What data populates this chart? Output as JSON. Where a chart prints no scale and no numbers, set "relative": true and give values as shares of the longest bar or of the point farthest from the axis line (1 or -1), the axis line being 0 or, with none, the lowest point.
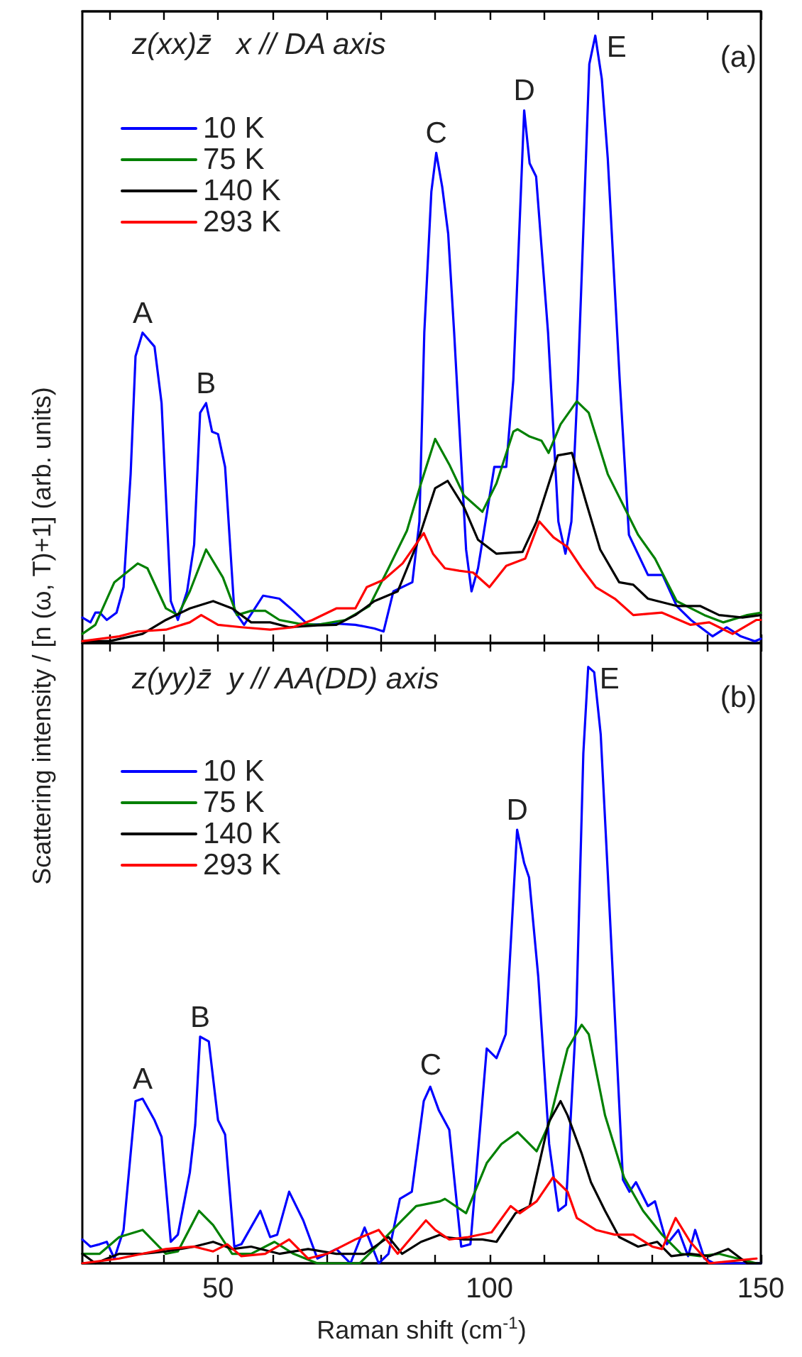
{
  "chart_data": [
    {
      "type": "line",
      "title": "z(xx)z̄   x // DA axis",
      "ylabel": "Scattering intensity / [n (ω, T)+1] (arb. units)",
      "relative": true,
      "xlim": [
        25,
        150
      ],
      "xticks": [
        {
          "value": 30,
          "label": null
        },
        {
          "value": 40,
          "label": null
        },
        50,
        {
          "value": 60,
          "label": null
        },
        {
          "value": 70,
          "label": null
        },
        {
          "value": 80,
          "label": null
        },
        {
          "value": 90,
          "label": null
        },
        100,
        {
          "value": 110,
          "label": null
        },
        {
          "value": 120,
          "label": null
        },
        {
          "value": 130,
          "label": null
        },
        {
          "value": 140,
          "label": null
        },
        150
      ],
      "tick_labels": false,
      "legend": "top left",
      "grid": false,
      "annotations": [
        {
          "text": "A",
          "x": 36.1,
          "y": 0.511
        },
        {
          "text": "B",
          "x": 47.8,
          "y": 0.395
        },
        {
          "text": "C",
          "x": 90.2,
          "y": 0.807
        },
        {
          "text": "D",
          "x": 106.4,
          "y": 0.877
        },
        {
          "text": "E",
          "x": 119.5,
          "y": 1.0
        },
        "(a)"
      ],
      "series": [
        {
          "name": "10 K",
          "color": "#0000ff",
          "x": [
            25,
            26.5,
            27.4,
            28.2,
            29.5,
            31.3,
            32.6,
            33.9,
            34.8,
            36.1,
            38.3,
            39.6,
            41.3,
            42.6,
            44.3,
            45.6,
            46.7,
            47.8,
            48.9,
            50.0,
            51.3,
            53.0,
            54.8,
            56.5,
            58.3,
            61.3,
            63.9,
            66.6,
            71.8,
            75.3,
            78.8,
            80.5,
            82.3,
            85.8,
            87.1,
            88.0,
            89.3,
            90.2,
            91.3,
            92.4,
            93.5,
            95.7,
            96.7,
            97.9,
            100.9,
            103.1,
            104.4,
            106.4,
            107.4,
            108.6,
            110.8,
            112.7,
            114.0,
            115.1,
            116.3,
            117.5,
            118.4,
            119.5,
            120.7,
            121.8,
            124.0,
            125.7,
            129.2,
            131.9,
            134.5,
            137.1,
            141.1,
            143.7,
            146.3,
            148.9,
            150
          ],
          "values": [
            0.042,
            0.034,
            0.05,
            0.05,
            0.038,
            0.05,
            0.092,
            0.278,
            0.472,
            0.511,
            0.488,
            0.395,
            0.069,
            0.038,
            0.085,
            0.162,
            0.379,
            0.395,
            0.348,
            0.344,
            0.29,
            0.053,
            0.03,
            0.053,
            0.078,
            0.073,
            0.053,
            0.03,
            0.032,
            0.03,
            0.024,
            0.019,
            0.085,
            0.1,
            0.2,
            0.511,
            0.743,
            0.807,
            0.751,
            0.674,
            0.511,
            0.154,
            0.085,
            0.123,
            0.29,
            0.29,
            0.433,
            0.877,
            0.79,
            0.768,
            0.511,
            0.2,
            0.147,
            0.2,
            0.433,
            0.728,
            0.953,
            1.0,
            0.929,
            0.798,
            0.433,
            0.178,
            0.112,
            0.112,
            0.061,
            0.038,
            0.011,
            0.026,
            0.011,
            0.003,
            0.007
          ]
        },
        {
          "name": "75 K",
          "color": "#008000",
          "x": [
            25,
            27.4,
            30.9,
            35.2,
            37.0,
            40.4,
            42.6,
            44.8,
            47.8,
            50.9,
            53.5,
            56.1,
            58.7,
            61.3,
            64.8,
            68.3,
            73.5,
            77.9,
            81.4,
            84.8,
            87.4,
            90.0,
            92.6,
            95.3,
            98.7,
            101.3,
            104.4,
            105.2,
            107.4,
            109.6,
            110.9,
            113.1,
            116.1,
            118.3,
            121.8,
            127.4,
            130.5,
            134.5,
            139.6,
            143.1,
            147.5,
            150
          ],
          "values": [
            0.015,
            0.03,
            0.1,
            0.131,
            0.123,
            0.057,
            0.046,
            0.085,
            0.154,
            0.108,
            0.046,
            0.053,
            0.053,
            0.038,
            0.032,
            0.03,
            0.038,
            0.061,
            0.123,
            0.185,
            0.263,
            0.336,
            0.294,
            0.243,
            0.216,
            0.263,
            0.348,
            0.352,
            0.34,
            0.333,
            0.313,
            0.36,
            0.398,
            0.379,
            0.278,
            0.178,
            0.139,
            0.069,
            0.046,
            0.034,
            0.046,
            0.05
          ]
        },
        {
          "name": "140 K",
          "color": "#000000",
          "x": [
            25,
            30.0,
            36.1,
            40.4,
            44.8,
            49.1,
            52.6,
            56.1,
            59.6,
            63.1,
            68.3,
            71.8,
            75.3,
            78.8,
            83.1,
            86.6,
            90.0,
            92.3,
            95.3,
            97.9,
            101.3,
            106.1,
            108.7,
            112.6,
            115.2,
            117.8,
            120.4,
            123.9,
            126.5,
            129.2,
            134.5,
            138.8,
            142.3,
            146.6,
            150
          ],
          "values": [
            0.003,
            0.003,
            0.015,
            0.038,
            0.057,
            0.069,
            0.057,
            0.034,
            0.034,
            0.026,
            0.029,
            0.03,
            0.046,
            0.069,
            0.085,
            0.162,
            0.255,
            0.267,
            0.224,
            0.17,
            0.147,
            0.15,
            0.2,
            0.309,
            0.313,
            0.232,
            0.154,
            0.1,
            0.096,
            0.073,
            0.061,
            0.061,
            0.046,
            0.042,
            0.046
          ]
        },
        {
          "name": "293 K",
          "color": "#ff0000",
          "x": [
            25,
            31.8,
            35.2,
            40.4,
            44.8,
            46.9,
            50.0,
            54.3,
            59.6,
            63.9,
            67.4,
            71.8,
            75.3,
            77.4,
            80.5,
            84.0,
            87.9,
            89.6,
            91.8,
            94.4,
            97.0,
            100.0,
            103.1,
            106.6,
            109.2,
            111.8,
            114.4,
            117.0,
            119.6,
            123.1,
            126.5,
            131.8,
            137.0,
            140.5,
            144.8,
            149.2,
            150
          ],
          "values": [
            0.003,
            0.011,
            0.019,
            0.022,
            0.034,
            0.046,
            0.03,
            0.026,
            0.022,
            0.026,
            0.038,
            0.057,
            0.057,
            0.092,
            0.104,
            0.131,
            0.181,
            0.147,
            0.123,
            0.119,
            0.116,
            0.092,
            0.127,
            0.139,
            0.2,
            0.174,
            0.158,
            0.123,
            0.092,
            0.073,
            0.046,
            0.05,
            0.03,
            0.034,
            0.015,
            0.038,
            0.038
          ]
        }
      ]
    },
    {
      "type": "line",
      "title": "z(yy)z̄  y // AA(DD) axis",
      "xlabel": "Raman shift (cm$^{-1}$)",
      "relative": true,
      "xlim": [
        25,
        150
      ],
      "xticks": [
        {
          "value": 30,
          "label": null
        },
        {
          "value": 40,
          "label": null
        },
        50,
        {
          "value": 60,
          "label": null
        },
        {
          "value": 70,
          "label": null
        },
        {
          "value": 80,
          "label": null
        },
        {
          "value": 90,
          "label": null
        },
        100,
        {
          "value": 110,
          "label": null
        },
        {
          "value": 120,
          "label": null
        },
        {
          "value": 130,
          "label": null
        },
        {
          "value": 140,
          "label": null
        },
        150
      ],
      "tick_labels": "x",
      "legend": "top left",
      "grid": false,
      "annotations": [
        {
          "text": "A",
          "x": 36.1,
          "y": 0.276
        },
        {
          "text": "B",
          "x": 46.7,
          "y": 0.38
        },
        {
          "text": "C",
          "x": 89.2,
          "y": 0.3
        },
        {
          "text": "D",
          "x": 105.1,
          "y": 0.727
        },
        {
          "text": "E",
          "x": 118.2,
          "y": 1.0
        },
        "(b)"
      ],
      "series": [
        {
          "name": "10 K",
          "color": "#0000ff",
          "x": [
            25,
            26.5,
            28.2,
            29.5,
            30.9,
            32.6,
            34.8,
            36.1,
            38.3,
            39.6,
            41.3,
            42.6,
            44.8,
            45.8,
            46.7,
            48.3,
            50.0,
            51.3,
            53.0,
            54.3,
            57.8,
            59.6,
            60.9,
            63.1,
            65.7,
            68.3,
            71.8,
            74.4,
            77.0,
            79.6,
            81.4,
            83.5,
            85.7,
            87.9,
            89.1,
            90.7,
            92.6,
            94.8,
            96.5,
            99.5,
            101.3,
            103.0,
            105.1,
            106.4,
            107.3,
            109.0,
            111.0,
            112.7,
            114.1,
            116.0,
            117.3,
            118.2,
            119.3,
            120.5,
            121.8,
            124.6,
            125.8,
            127.0,
            129.2,
            130.5,
            132.7,
            134.8,
            136.6,
            137.9,
            139.6,
            141.4,
            144.0,
            147.5,
            150
          ],
          "values": [
            0.04,
            0.028,
            0.032,
            0.036,
            0.008,
            0.056,
            0.272,
            0.276,
            0.24,
            0.212,
            0.036,
            0.048,
            0.152,
            0.232,
            0.38,
            0.372,
            0.24,
            0.216,
            0.028,
            0.032,
            0.088,
            0.044,
            0.048,
            0.12,
            0.072,
            0.008,
            0.024,
            0,
            0.06,
            0,
            0.016,
            0.108,
            0.12,
            0.272,
            0.296,
            0.256,
            0.224,
            0.028,
            0.032,
            0.36,
            0.344,
            0.384,
            0.727,
            0.671,
            0.647,
            0.48,
            0.2,
            0.088,
            0.098,
            0.416,
            0.855,
            1.0,
            0.991,
            0.887,
            0.655,
            0.14,
            0.12,
            0.136,
            0.096,
            0.104,
            0.032,
            0.056,
            0.012,
            0.056,
            0.008,
            0,
            0,
            0,
            0
          ]
        },
        {
          "name": "75 K",
          "color": "#008000",
          "x": [
            25,
            28.2,
            31.8,
            36.1,
            40.4,
            42.6,
            46.5,
            49.1,
            52.6,
            56.1,
            60.4,
            63.9,
            68.3,
            71.8,
            76.1,
            79.6,
            83.9,
            86.5,
            90.9,
            91.8,
            95.7,
            99.5,
            102.2,
            105.2,
            108.7,
            110.9,
            114.4,
            117.0,
            118.3,
            121.3,
            124.8,
            128.3,
            131.8,
            135.3,
            138.8,
            142.3,
            145.7,
            149.2
          ],
          "values": [
            0.016,
            0.016,
            0.044,
            0.056,
            0.016,
            0.02,
            0.088,
            0.064,
            0.016,
            0.016,
            0.036,
            0.016,
            0,
            0,
            0,
            0.032,
            0.072,
            0.096,
            0.104,
            0.108,
            0.084,
            0.168,
            0.2,
            0.22,
            0.188,
            0.232,
            0.36,
            0.4,
            0.384,
            0.248,
            0.144,
            0.088,
            0.048,
            0.016,
            0.012,
            0.016,
            0.008,
            0
          ]
        },
        {
          "name": "140 K",
          "color": "#000000",
          "x": [
            25,
            27.4,
            31.8,
            36.1,
            40.4,
            45.6,
            49.1,
            52.6,
            56.1,
            61.3,
            66.6,
            71.8,
            77.0,
            81.4,
            83.9,
            87.4,
            90.9,
            91.8,
            95.3,
            98.7,
            101.3,
            104.8,
            107.4,
            109.0,
            110.9,
            113.1,
            114.4,
            117.0,
            118.7,
            121.3,
            123.9,
            127.4,
            130.9,
            133.5,
            137.0,
            140.5,
            144.0,
            147.5,
            150
          ],
          "values": [
            0.016,
            0,
            0.016,
            0.016,
            0.02,
            0.028,
            0.036,
            0.024,
            0.028,
            0.016,
            0.024,
            0.016,
            0.016,
            0.044,
            0.016,
            0.036,
            0.048,
            0.044,
            0.04,
            0.04,
            0.036,
            0.084,
            0.096,
            0.16,
            0.236,
            0.272,
            0.248,
            0.184,
            0.136,
            0.088,
            0.044,
            0.028,
            0.036,
            0.012,
            0.016,
            0.012,
            0.024,
            0,
            0
          ]
        },
        {
          "name": "293 K",
          "color": "#ff0000",
          "x": [
            25,
            31.8,
            36.1,
            40.4,
            45.6,
            49.1,
            51.7,
            54.3,
            58.7,
            63.1,
            66.6,
            70.1,
            75.3,
            79.6,
            83.1,
            88.3,
            90.0,
            92.6,
            96.1,
            100.4,
            103.9,
            105.6,
            108.7,
            111.7,
            114.4,
            116.1,
            119.6,
            123.1,
            126.5,
            130.0,
            131.8,
            134.3,
            137.0,
            140.5,
            149.2
          ],
          "values": [
            0,
            0.008,
            0.016,
            0.024,
            0.028,
            0.02,
            0.032,
            0.012,
            0.016,
            0.04,
            0.008,
            0.016,
            0.04,
            0.056,
            0.016,
            0.072,
            0.056,
            0.04,
            0.044,
            0.052,
            0.096,
            0.084,
            0.104,
            0.144,
            0.12,
            0.076,
            0.056,
            0.048,
            0.048,
            0.028,
            0.024,
            0.076,
            0.036,
            0,
            0.008
          ]
        }
      ]
    }
  ]
}
